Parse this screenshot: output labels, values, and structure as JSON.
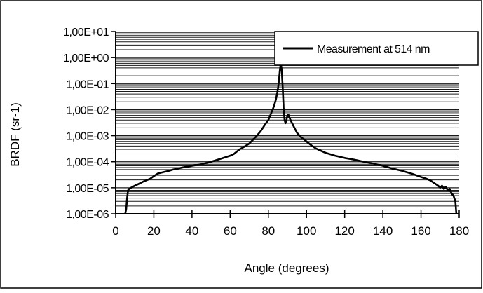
{
  "chart_data": {
    "type": "line",
    "title": "",
    "xlabel": "Angle (degrees)",
    "ylabel": "BRDF (sr-1)",
    "xlim": [
      0,
      180
    ],
    "ylim": [
      1e-06,
      10
    ],
    "y_scale": "log",
    "x_ticks": [
      0,
      20,
      40,
      60,
      80,
      100,
      120,
      140,
      160,
      180
    ],
    "x_tick_labels": [
      "0",
      "20",
      "40",
      "60",
      "80",
      "100",
      "120",
      "140",
      "160",
      "180"
    ],
    "y_ticks": [
      10.0,
      1.0,
      0.1,
      0.01,
      0.001,
      0.0001,
      1e-05,
      1e-06
    ],
    "y_tick_labels": [
      "1,00E+01",
      "1,00E+00",
      "1,00E-01",
      "1,00E-02",
      "1,00E-03",
      "1,00E-04",
      "1,00E-05",
      "1,00E-06"
    ],
    "grid": "horizontal minor lines",
    "legend_position": "top-right",
    "colors": {
      "line": "#000000",
      "grid": "#1a1a1a",
      "frame": "#000000"
    },
    "series": [
      {
        "name": "Measurement at 514 nm",
        "x": [
          5,
          5.5,
          6,
          6.5,
          7,
          8,
          10,
          12,
          15,
          18,
          20,
          22,
          25,
          28,
          30,
          35,
          40,
          45,
          50,
          55,
          60,
          62,
          65,
          68,
          70,
          72,
          74,
          76,
          78,
          80,
          81,
          82,
          83,
          84,
          85,
          85.5,
          86,
          86.5,
          87,
          87.5,
          88,
          88.5,
          89,
          89.5,
          90,
          90.5,
          91,
          92,
          93,
          94,
          95,
          97,
          100,
          103,
          105,
          110,
          115,
          120,
          125,
          130,
          135,
          140,
          145,
          150,
          155,
          160,
          163,
          165,
          167,
          169,
          170,
          171,
          172,
          173,
          174,
          175,
          176,
          177,
          178,
          178.5
        ],
        "y": [
          1e-06,
          1.5e-06,
          4e-06,
          8e-06,
          9e-06,
          1e-05,
          1.2e-05,
          1.4e-05,
          1.8e-05,
          2.2e-05,
          2.8e-05,
          3.5e-05,
          4e-05,
          4.5e-05,
          5e-05,
          6e-05,
          7e-05,
          8e-05,
          0.0001,
          0.00013,
          0.00017,
          0.0002,
          0.0003,
          0.0004,
          0.0005,
          0.0007,
          0.001,
          0.0015,
          0.0025,
          0.004,
          0.006,
          0.009,
          0.014,
          0.025,
          0.06,
          0.12,
          0.3,
          0.6,
          0.35,
          0.08,
          0.012,
          0.004,
          0.003,
          0.004,
          0.006,
          0.0065,
          0.005,
          0.0035,
          0.0025,
          0.0018,
          0.0013,
          0.0009,
          0.0006,
          0.0004,
          0.00032,
          0.00022,
          0.00017,
          0.00014,
          0.00012,
          0.0001,
          8.5e-05,
          7e-05,
          5.5e-05,
          4.5e-05,
          3.5e-05,
          2.6e-05,
          2.2e-05,
          1.9e-05,
          1.5e-05,
          1.2e-05,
          1e-05,
          1.2e-05,
          9e-06,
          1.1e-05,
          8e-06,
          9e-06,
          6e-06,
          5e-06,
          3e-06,
          1e-06
        ]
      }
    ]
  }
}
